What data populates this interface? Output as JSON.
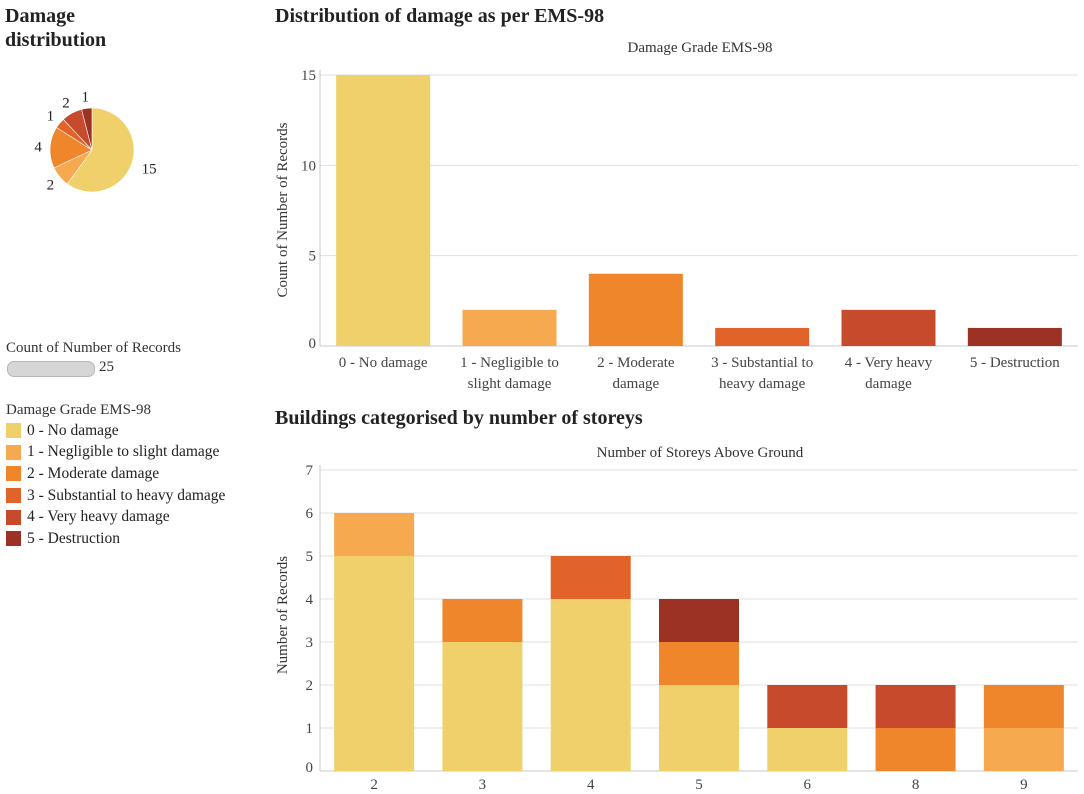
{
  "left_panel": {
    "title": "Damage distribution",
    "size_legend_title": "Count of Number of Records",
    "size_legend_value": "25",
    "color_legend_title": "Damage Grade EMS-98"
  },
  "grade_legend": [
    {
      "label": "0 - No damage",
      "color": "#f0d06a"
    },
    {
      "label": "1 - Negligible to slight damage",
      "color": "#f7a950"
    },
    {
      "label": "2 - Moderate damage",
      "color": "#ef862c"
    },
    {
      "label": "3 - Substantial to heavy damage",
      "color": "#e2632a"
    },
    {
      "label": "4 - Very heavy damage",
      "color": "#c64a2b"
    },
    {
      "label": "5 - Destruction",
      "color": "#9b3224"
    }
  ],
  "chart_data": [
    {
      "id": "pie",
      "type": "pie",
      "title": "Damage distribution",
      "categories": [
        "0 - No damage",
        "1 - Negligible to slight damage",
        "2 - Moderate damage",
        "3 - Substantial to heavy damage",
        "4 - Very heavy damage",
        "5 - Destruction"
      ],
      "values": [
        15,
        2,
        4,
        1,
        2,
        1
      ],
      "labels": [
        "15",
        "2",
        "4",
        "1",
        "2",
        "1"
      ]
    },
    {
      "id": "bar_grade",
      "type": "bar",
      "section_title": "Distribution of damage as per EMS-98",
      "title": "Damage Grade EMS-98",
      "ylabel": "Count of Number of Records",
      "xlabel": "",
      "ylim": [
        0,
        15
      ],
      "yticks": [
        0,
        5,
        10,
        15
      ],
      "categories": [
        [
          "0 - No damage"
        ],
        [
          "1 - Negligible to",
          "slight damage"
        ],
        [
          "2 - Moderate",
          "damage"
        ],
        [
          "3 - Substantial to",
          "heavy damage"
        ],
        [
          "4 - Very heavy",
          "damage"
        ],
        [
          "5 - Destruction"
        ]
      ],
      "values": [
        15,
        2,
        4,
        1,
        2,
        1
      ]
    },
    {
      "id": "bar_storeys",
      "type": "bar",
      "stacked": true,
      "section_title": "Buildings categorised by number of storeys",
      "title": "Number of Storeys Above Ground",
      "ylabel": "Number of Records",
      "xlabel": "",
      "ylim": [
        0,
        7
      ],
      "yticks": [
        0,
        1,
        2,
        3,
        4,
        5,
        6,
        7
      ],
      "categories": [
        "2",
        "3",
        "4",
        "5",
        "6",
        "8",
        "9"
      ],
      "series": [
        {
          "name": "0 - No damage",
          "values": [
            5,
            3,
            4,
            2,
            1,
            0,
            0
          ]
        },
        {
          "name": "1 - Negligible to slight damage",
          "values": [
            1,
            0,
            0,
            0,
            0,
            0,
            1
          ]
        },
        {
          "name": "2 - Moderate damage",
          "values": [
            0,
            1,
            0,
            1,
            0,
            1,
            1
          ]
        },
        {
          "name": "3 - Substantial to heavy damage",
          "values": [
            0,
            0,
            1,
            0,
            0,
            0,
            0
          ]
        },
        {
          "name": "4 - Very heavy damage",
          "values": [
            0,
            0,
            0,
            0,
            1,
            1,
            0
          ]
        },
        {
          "name": "5 - Destruction",
          "values": [
            0,
            0,
            0,
            1,
            0,
            0,
            0
          ]
        }
      ]
    }
  ]
}
